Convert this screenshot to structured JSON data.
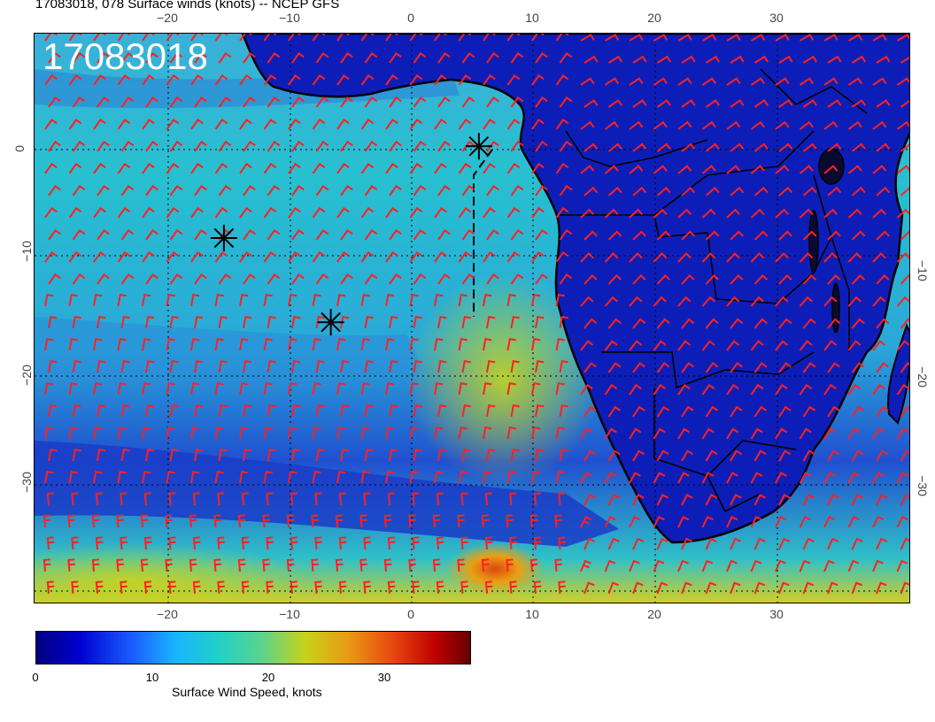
{
  "title": "17083018, 078 Surface winds (knots) -- NCEP GFS",
  "stamp": "17083018",
  "lon_ticks": [
    "−20",
    "−10",
    "0",
    "10",
    "20",
    "30"
  ],
  "lat_ticks_left": [
    "0",
    "−10",
    "−20",
    "−30"
  ],
  "lat_ticks_right": [
    "−10",
    "−20",
    "−30"
  ],
  "colorbar": {
    "ticks": [
      "0",
      "10",
      "20",
      "30"
    ],
    "label": "Surface Wind Speed, knots"
  },
  "colors": {
    "ocean_low": "#1a3fd0",
    "ocean_mid": "#20b8d8",
    "land": "#0d1fb8",
    "barbs": "#ff2020",
    "coast": "#000000"
  },
  "markers": [
    {
      "name": "storm-marker-1",
      "lon": 6.6,
      "lat": 0.3
    },
    {
      "name": "storm-marker-2",
      "lon": -14.4,
      "lat": -8.2
    },
    {
      "name": "storm-marker-3",
      "lon": -5.6,
      "lat": -16.0
    }
  ]
}
